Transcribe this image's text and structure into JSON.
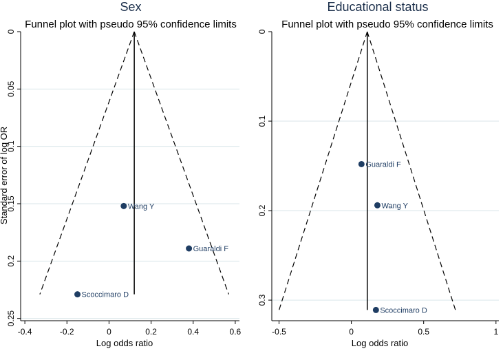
{
  "chart_data": [
    {
      "type": "scatter",
      "title": "Sex",
      "subtitle": "Funnel plot with pseudo 95% confidence limits",
      "xlabel": "Log odds ratio",
      "ylabel": "Standard error of log OR",
      "xlim": [
        -0.42,
        0.62
      ],
      "ylim": [
        0,
        0.252
      ],
      "y_reversed": true,
      "xticks": [
        -0.4,
        -0.2,
        0,
        0.2,
        0.4,
        0.6
      ],
      "xtick_labels": [
        "-0.4",
        "-0.2",
        "0",
        "0.2",
        "0.4",
        "0.6"
      ],
      "yticks": [
        0,
        0.05,
        0.1,
        0.15,
        0.2,
        0.25
      ],
      "ytick_labels": [
        "0",
        "0.05",
        "0.1",
        "0.15",
        "0.2",
        "0.25"
      ],
      "grid": "horizontal",
      "pooled_estimate": 0.12,
      "se_max": 0.229,
      "points": [
        {
          "label": "Wang Y",
          "x": 0.07,
          "y": 0.152
        },
        {
          "label": "Guaraldi F",
          "x": 0.38,
          "y": 0.189
        },
        {
          "label": "Scoccimaro D",
          "x": -0.15,
          "y": 0.229
        }
      ]
    },
    {
      "type": "scatter",
      "title": "Educational status",
      "subtitle": "Funnel plot with pseudo 95% confidence limits",
      "xlabel": "Log odds ratio",
      "ylabel": "",
      "xlim": [
        -0.55,
        1.02
      ],
      "ylim": [
        0,
        0.323
      ],
      "y_reversed": true,
      "xticks": [
        -0.5,
        0,
        0.5,
        1
      ],
      "xtick_labels": [
        "-0.5",
        "0",
        "0.5",
        "1"
      ],
      "yticks": [
        0,
        0.1,
        0.2,
        0.3
      ],
      "ytick_labels": [
        "0",
        "0.1",
        "0.2",
        "0.3"
      ],
      "grid": "horizontal",
      "pooled_estimate": 0.11,
      "se_max": 0.311,
      "points": [
        {
          "label": "Guaraldi F",
          "x": 0.07,
          "y": 0.148
        },
        {
          "label": "Wang Y",
          "x": 0.18,
          "y": 0.194
        },
        {
          "label": "Scoccimaro D",
          "x": 0.17,
          "y": 0.311
        }
      ]
    }
  ]
}
